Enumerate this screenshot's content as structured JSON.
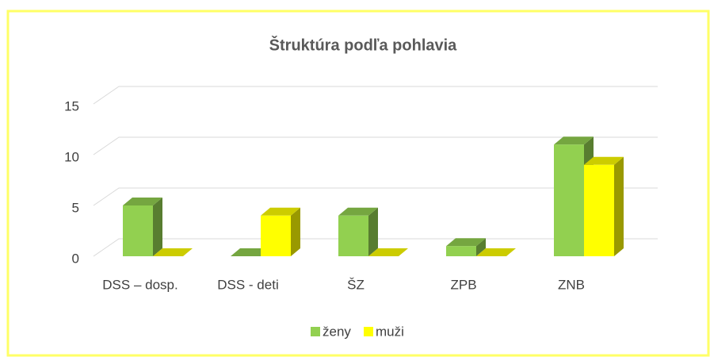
{
  "chart_data": {
    "type": "bar3d",
    "title": "Štruktúra podľa pohlavia",
    "categories": [
      "DSS – dosp.",
      "DSS - deti",
      "ŠZ",
      "ZPB",
      "ZNB"
    ],
    "series": [
      {
        "name": "ženy",
        "color": "#92d050",
        "values": [
          5,
          0,
          4,
          1,
          11
        ]
      },
      {
        "name": "muži",
        "color": "#ffff00",
        "values": [
          0,
          4,
          0,
          0,
          9
        ]
      }
    ],
    "ylim": [
      0,
      15
    ],
    "yticks": [
      0,
      5,
      10,
      15
    ],
    "grid": true,
    "legend": "bottom"
  }
}
